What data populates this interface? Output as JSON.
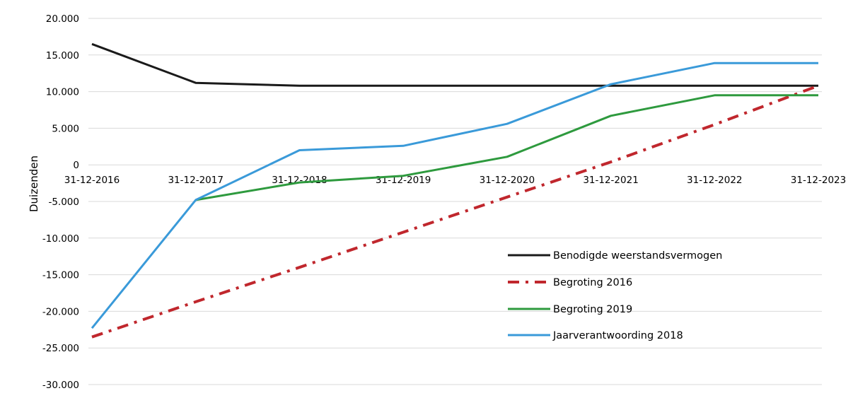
{
  "chart_data": {
    "type": "line",
    "ylabel": "Duizenden",
    "categories": [
      "31-12-2016",
      "31-12-2017",
      "31-12-2018",
      "31-12-2019",
      "31-12-2020",
      "31-12-2021",
      "31-12-2022",
      "31-12-2023"
    ],
    "ylim": [
      -30000,
      20000
    ],
    "yticks": [
      20000,
      15000,
      10000,
      5000,
      0,
      -5000,
      -10000,
      -15000,
      -20000,
      -25000,
      -30000
    ],
    "ytick_labels": [
      "20.000",
      "15.000",
      "10.000",
      "5.000",
      "0",
      "-5.000",
      "-10.000",
      "-15.000",
      "-20.000",
      "-25.000",
      "-30.000"
    ],
    "grid": true,
    "legend_position": "lower-right",
    "series": [
      {
        "name": "Benodigde weerstandsvermogen",
        "values": [
          16500,
          11200,
          10800,
          10800,
          10800,
          10800,
          10800,
          10800
        ],
        "color": "#1a1a1a",
        "style": "solid"
      },
      {
        "name": "Begroting 2016",
        "values": [
          -23500,
          -18700,
          -14000,
          -9200,
          -4400,
          400,
          5500,
          10800
        ],
        "color": "#c0272d",
        "style": "dash-dot"
      },
      {
        "name": "Begroting 2019",
        "values": null,
        "x_start": 1,
        "values_from_start": [
          -4800,
          -2400,
          -1500,
          1100,
          6700,
          9500,
          9500
        ],
        "color": "#2e9a3e",
        "style": "solid"
      },
      {
        "name": "Jaarverantwoording 2018",
        "values": [
          -22300,
          -4800,
          2000,
          2600,
          5600,
          11000,
          13900,
          13900
        ],
        "color": "#3a9ad9",
        "style": "solid"
      }
    ]
  }
}
